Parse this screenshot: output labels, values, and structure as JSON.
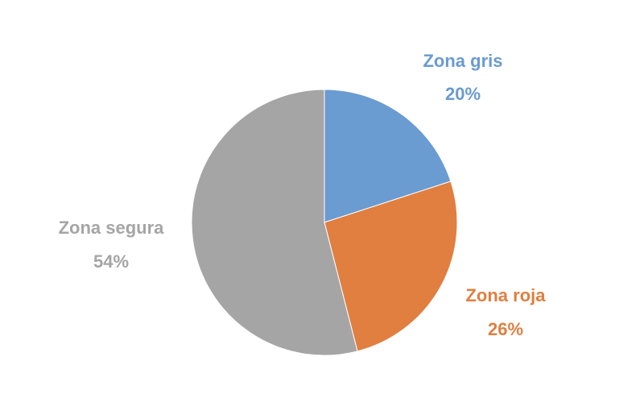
{
  "chart_data": {
    "type": "pie",
    "title": "",
    "start_angle_deg": 0,
    "direction": "clockwise",
    "slices": [
      {
        "label": "Zona gris",
        "value": 20,
        "value_label": "20%",
        "color": "#6a9bd1"
      },
      {
        "label": "Zona roja",
        "value": 26,
        "value_label": "26%",
        "color": "#e07f40"
      },
      {
        "label": "Zona segura",
        "value": 54,
        "value_label": "54%",
        "color": "#a5a5a5"
      }
    ]
  }
}
